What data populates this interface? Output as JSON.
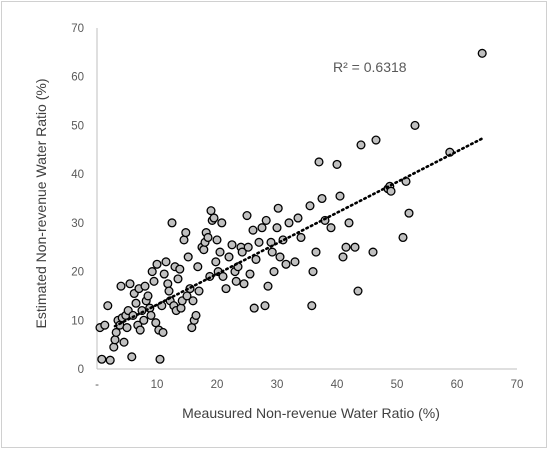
{
  "chart_data": {
    "type": "scatter",
    "xlabel": "Meausured Non-revenue Water Ratio (%)",
    "ylabel": "Estimated Non-revenue Water Ratio (%)",
    "xlim": [
      0,
      70
    ],
    "ylim": [
      0,
      70
    ],
    "x_tick_labels": [
      "-",
      "10",
      "20",
      "30",
      "40",
      "50",
      "60",
      "70"
    ],
    "y_tick_labels": [
      "0",
      "10",
      "20",
      "30",
      "40",
      "50",
      "60",
      "70"
    ],
    "annotation": "R² = 0.6318",
    "trendline": {
      "style": "dotted",
      "x": [
        3.0,
        64.5
      ],
      "y": [
        8.8,
        47.5
      ]
    },
    "grid": false,
    "legend": "none",
    "marker_color": "#c0c0c0",
    "marker_edge": "#000000",
    "points": [
      [
        0.5,
        8.5
      ],
      [
        0.8,
        2
      ],
      [
        1.3,
        9
      ],
      [
        1.8,
        13
      ],
      [
        2.2,
        1.8
      ],
      [
        2.8,
        4.5
      ],
      [
        3,
        6
      ],
      [
        3.2,
        7.5
      ],
      [
        3.5,
        10
      ],
      [
        3.8,
        9
      ],
      [
        4,
        17
      ],
      [
        4.2,
        10.5
      ],
      [
        4.5,
        5.5
      ],
      [
        4.8,
        11
      ],
      [
        5,
        8.5
      ],
      [
        5.2,
        12
      ],
      [
        5.5,
        17.5
      ],
      [
        5.8,
        2.5
      ],
      [
        6,
        11
      ],
      [
        6.2,
        15.5
      ],
      [
        6.5,
        13.5
      ],
      [
        6.8,
        9
      ],
      [
        7,
        16.5
      ],
      [
        7.2,
        8
      ],
      [
        7.5,
        12
      ],
      [
        7.8,
        10
      ],
      [
        8,
        17
      ],
      [
        8.2,
        14
      ],
      [
        8.5,
        15
      ],
      [
        8.8,
        12.5
      ],
      [
        9,
        11
      ],
      [
        9.2,
        20
      ],
      [
        9.5,
        18
      ],
      [
        9.8,
        9.5
      ],
      [
        10,
        21.5
      ],
      [
        10.3,
        8
      ],
      [
        10.5,
        2
      ],
      [
        10.8,
        13
      ],
      [
        11,
        7.5
      ],
      [
        11.2,
        19.5
      ],
      [
        11.5,
        22
      ],
      [
        11.8,
        17.5
      ],
      [
        12,
        16
      ],
      [
        12.2,
        14
      ],
      [
        12.5,
        30
      ],
      [
        12.8,
        13
      ],
      [
        13,
        21
      ],
      [
        13.2,
        12
      ],
      [
        13.5,
        18.5
      ],
      [
        13.8,
        20.5
      ],
      [
        14,
        12.5
      ],
      [
        14.2,
        14
      ],
      [
        14.5,
        26.5
      ],
      [
        14.8,
        28
      ],
      [
        15,
        15
      ],
      [
        15.2,
        23
      ],
      [
        15.5,
        16.5
      ],
      [
        15.8,
        8.5
      ],
      [
        16,
        14
      ],
      [
        16.2,
        10
      ],
      [
        16.5,
        11
      ],
      [
        16.8,
        21
      ],
      [
        17,
        16
      ],
      [
        17.5,
        25
      ],
      [
        17.8,
        24.5
      ],
      [
        18,
        26
      ],
      [
        18.2,
        28
      ],
      [
        18.5,
        27
      ],
      [
        18.8,
        19
      ],
      [
        19,
        32.5
      ],
      [
        19.2,
        30.5
      ],
      [
        19.5,
        31
      ],
      [
        19.8,
        22
      ],
      [
        20,
        26.5
      ],
      [
        20.2,
        20
      ],
      [
        20.5,
        24
      ],
      [
        20.8,
        30
      ],
      [
        21,
        19
      ],
      [
        21.5,
        16.5
      ],
      [
        22,
        23
      ],
      [
        22.5,
        25.5
      ],
      [
        23,
        20
      ],
      [
        23.2,
        18
      ],
      [
        23.5,
        21
      ],
      [
        24,
        25
      ],
      [
        24.2,
        24
      ],
      [
        24.5,
        17.5
      ],
      [
        25,
        31.5
      ],
      [
        25.2,
        25
      ],
      [
        25.5,
        19.5
      ],
      [
        26,
        28.5
      ],
      [
        26.2,
        12.5
      ],
      [
        26.5,
        22.5
      ],
      [
        27,
        26
      ],
      [
        27.5,
        29
      ],
      [
        28,
        13
      ],
      [
        28.2,
        30.5
      ],
      [
        28.5,
        17
      ],
      [
        29,
        26
      ],
      [
        29.2,
        24
      ],
      [
        29.5,
        20
      ],
      [
        30,
        29
      ],
      [
        30.2,
        33
      ],
      [
        30.5,
        23
      ],
      [
        31,
        26.5
      ],
      [
        31.5,
        21.5
      ],
      [
        32,
        30
      ],
      [
        33,
        22
      ],
      [
        33.5,
        31
      ],
      [
        34,
        27
      ],
      [
        35.5,
        33.5
      ],
      [
        35.8,
        13
      ],
      [
        36,
        20
      ],
      [
        36.5,
        24
      ],
      [
        37,
        42.5
      ],
      [
        37.5,
        35
      ],
      [
        38,
        30.5
      ],
      [
        39,
        29
      ],
      [
        40,
        42
      ],
      [
        40.5,
        35.5
      ],
      [
        41,
        23
      ],
      [
        41.5,
        25
      ],
      [
        42,
        30
      ],
      [
        43,
        25
      ],
      [
        43.5,
        16
      ],
      [
        44,
        46
      ],
      [
        46,
        24
      ],
      [
        46.5,
        47
      ],
      [
        48.5,
        37
      ],
      [
        48.8,
        37.5
      ],
      [
        49,
        36.5
      ],
      [
        51,
        27
      ],
      [
        51.5,
        38.5
      ],
      [
        52,
        32
      ],
      [
        53,
        50
      ],
      [
        58.8,
        44.5
      ],
      [
        64.2,
        64.8
      ]
    ]
  }
}
